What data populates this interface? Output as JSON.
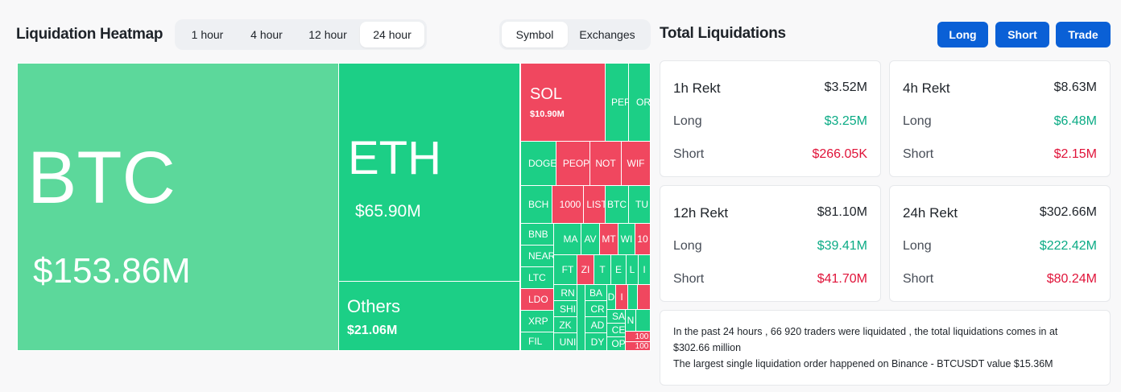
{
  "heatmap": {
    "title": "Liquidation Heatmap",
    "time_tabs": [
      "1 hour",
      "4 hour",
      "12 hour",
      "24 hour"
    ],
    "active_time_tab": "24 hour",
    "view_tabs": [
      "Symbol",
      "Exchanges"
    ],
    "active_view_tab": "Symbol",
    "tiles": {
      "btc": {
        "symbol": "BTC",
        "value": "$153.86M"
      },
      "eth": {
        "symbol": "ETH",
        "value": "$65.90M"
      },
      "others": {
        "symbol": "Others",
        "value": "$21.06M"
      },
      "sol": {
        "symbol": "SOL",
        "value": "$10.90M"
      },
      "small": {
        "pep": "PEP",
        "or": "OR",
        "doge": "DOGE",
        "peop": "PEOP",
        "not": "NOT",
        "wif": "WIF",
        "bch": "BCH",
        "k1000": "1000",
        "list": "LIST",
        "btc2": "BTC",
        "tu": "TU",
        "bnb": "BNB",
        "ma": "MA",
        "av": "AV",
        "mt": "MT",
        "wi": "WI",
        "n10": "10",
        "near": "NEAR",
        "ltc": "LTC",
        "ft": "FT",
        "zi": "ZI",
        "t": "T",
        "e": "E",
        "l": "L",
        "i2": "I",
        "ldo": "LDO",
        "rn": "RN",
        "ba": "BA",
        "d": "D",
        "i": "I",
        "xrp": "XRP",
        "sh": "SHI",
        "cr": "CR",
        "sa": "SA",
        "n": "N",
        "fil": "FIL",
        "zk": "ZK",
        "ad": "AD",
        "ce": "CE",
        "n100a": "100",
        "uni": "UNI",
        "dy": "DY",
        "op": "OP",
        "n100b": "100"
      }
    }
  },
  "totals": {
    "title": "Total Liquidations",
    "buttons": {
      "long": "Long",
      "short": "Short",
      "trade": "Trade"
    },
    "long_label": "Long",
    "short_label": "Short",
    "cards": {
      "h1": {
        "title": "1h Rekt",
        "total": "$3.52M",
        "long": "$3.25M",
        "short": "$266.05K"
      },
      "h4": {
        "title": "4h Rekt",
        "total": "$8.63M",
        "long": "$6.48M",
        "short": "$2.15M"
      },
      "h12": {
        "title": "12h Rekt",
        "total": "$81.10M",
        "long": "$39.41M",
        "short": "$41.70M"
      },
      "h24": {
        "title": "24h Rekt",
        "total": "$302.66M",
        "long": "$222.42M",
        "short": "$80.24M"
      }
    },
    "summary": {
      "line1": "In the past 24 hours , 66 920 traders were liquidated , the total liquidations comes in at",
      "line2": "$302.66 million",
      "line3": "The largest single liquidation order happened on Binance - BTCUSDT value $15.36M"
    }
  },
  "colors": {
    "green": "#1ccf86",
    "light_green": "#5cd89b",
    "red": "#f0475f",
    "button_blue": "#0a60d6",
    "positive_text": "#0bab85",
    "negative_text": "#e01339"
  }
}
